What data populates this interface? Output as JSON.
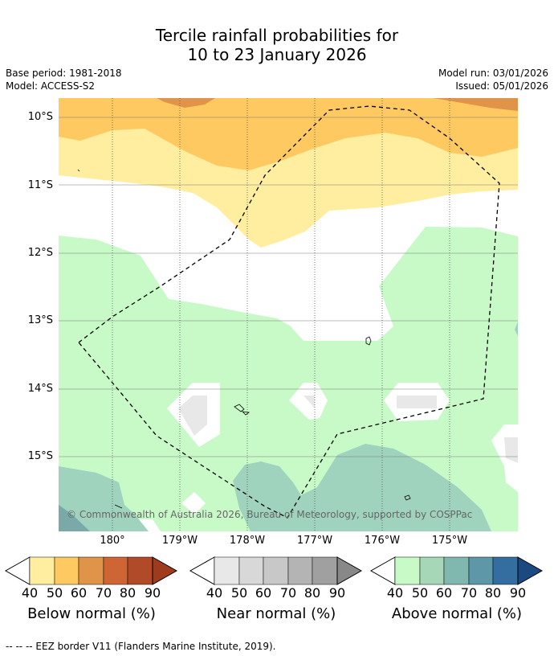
{
  "title_line1": "Tercile rainfall probabilities for",
  "title_line2": "10 to 23 January 2026",
  "base_period": "Base period: 1981-2018",
  "model": "Model: ACCESS-S2",
  "model_run": "Model run: 03/01/2026",
  "issued": "Issued: 05/01/2026",
  "lat_labels": [
    "10°S",
    "11°S",
    "12°S",
    "13°S",
    "14°S",
    "15°S"
  ],
  "lon_labels": [
    "180°",
    "179°W",
    "178°W",
    "177°W",
    "176°W",
    "175°W"
  ],
  "copyright": "© Commonwealth of Australia 2026, Bureau of Meteorology, supported by COSPPac",
  "colorbars": [
    {
      "title": "Below normal (%)",
      "ticks": [
        "40",
        "50",
        "60",
        "70",
        "80",
        "90"
      ],
      "colors": [
        "#ffeda0",
        "#fec961",
        "#e0944a",
        "#cf6435",
        "#b04a28",
        "#a03a1c"
      ]
    },
    {
      "title": "Near normal (%)",
      "ticks": [
        "40",
        "50",
        "60",
        "70",
        "80",
        "90"
      ],
      "colors": [
        "#e8e8e8",
        "#d8d8d8",
        "#c8c8c8",
        "#b4b4b4",
        "#a0a0a0",
        "#888888"
      ]
    },
    {
      "title": "Above normal (%)",
      "ticks": [
        "40",
        "50",
        "60",
        "70",
        "80",
        "90"
      ],
      "colors": [
        "#c8fac8",
        "#a6d8b8",
        "#80b8b0",
        "#5e98a8",
        "#346ea0",
        "#1c4a80"
      ]
    }
  ],
  "footnote": "--  --  -- EEZ border V11 (Flanders Marine Institute, 2019).",
  "colors": {
    "below_40": "#ffeda0",
    "below_50": "#fec961",
    "below_60": "#e0944a",
    "above_40": "#c8fac8",
    "above_50": "#9fd3bd",
    "above_60": "#7aa9a8",
    "near_40": "#e8e8e8"
  }
}
